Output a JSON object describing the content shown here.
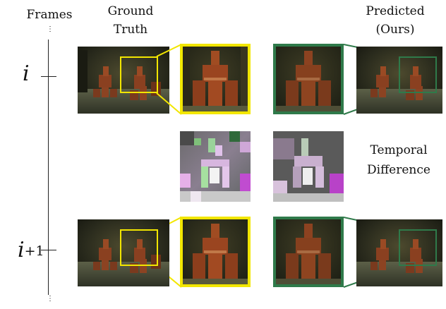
{
  "labels": {
    "frames": "Frames",
    "ground_truth": [
      "Ground",
      "Truth"
    ],
    "predicted": [
      "Predicted",
      "(Ours)"
    ],
    "temporal_difference": [
      "Temporal",
      "Difference"
    ]
  },
  "frame_ticks": [
    "i",
    "+1"
  ],
  "colors": {
    "ground_truth_box": "#f2e600",
    "predicted_box": "#2f7a4a",
    "axis": "#222222"
  }
}
